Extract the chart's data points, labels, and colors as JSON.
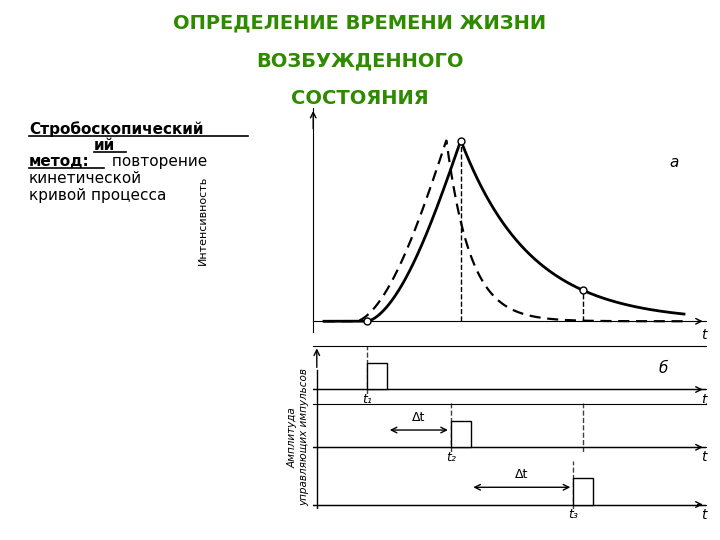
{
  "title_line1": "ОПРЕДЕЛЕНИЕ ВРЕМЕНИ ЖИЗНИ",
  "title_line2": "ВОЗБУЖДЕННОГО",
  "title_line3": "СОСТОЯНИЯ",
  "title_color": "#2e8b00",
  "bg_color": "#ffffff",
  "label_a": "а",
  "label_b": "б",
  "ylabel_top": "Интенсивность",
  "ylabel_bottom": "Амплитуда\nуправляющих импульсов",
  "dt_label": "Δt",
  "t1_label": "t₁",
  "t2_label": "t₂",
  "t3_label": "t₃",
  "t_label": "t",
  "strob_line1": "Стробоскопический",
  "strob_line2": "ий",
  "metod_bold": "метод:",
  "metod_rest": " повторение",
  "line3": "кинетической",
  "line4": "кривой процесса"
}
